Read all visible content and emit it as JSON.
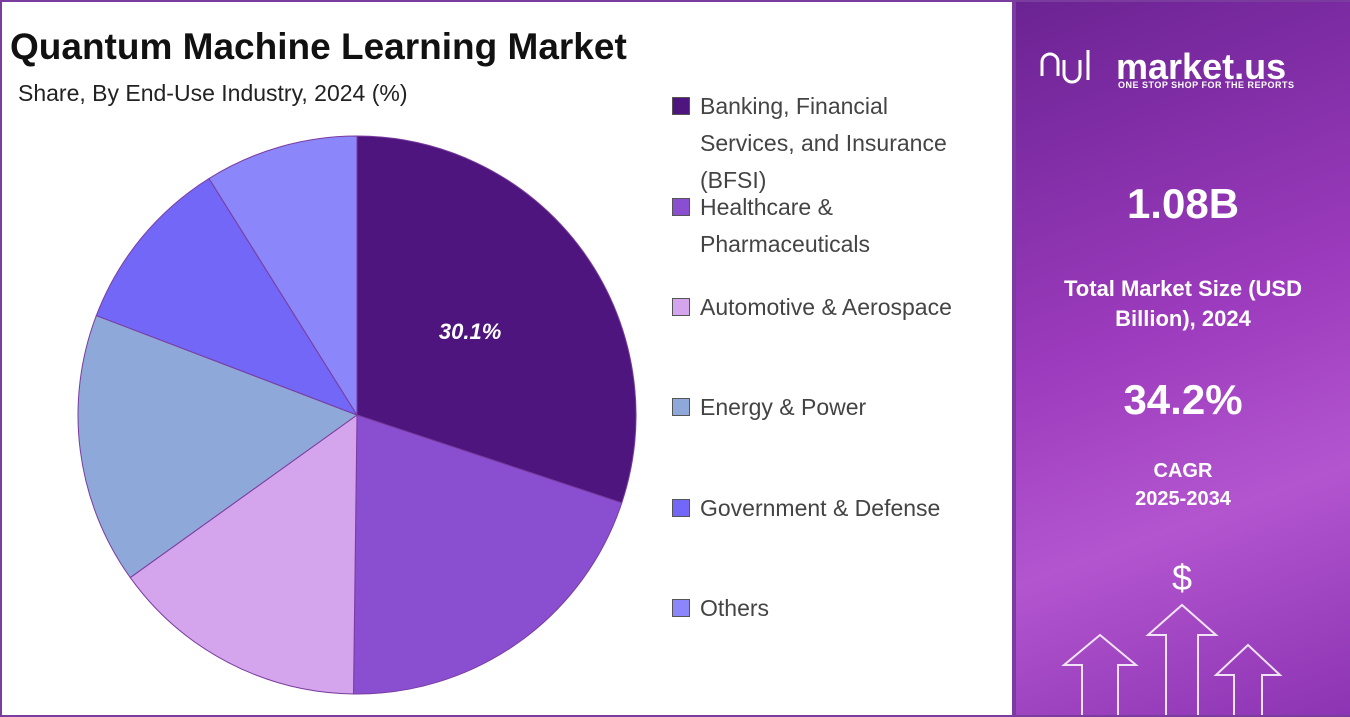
{
  "chart_data": {
    "type": "pie",
    "title": "Quantum Machine Learning Market",
    "subtitle": "Share, By End-Use Industry, 2024 (%)",
    "categories": [
      "Banking, Financial Services, and Insurance (BFSI)",
      "Healthcare & Pharmaceuticals",
      "Automotive & Aerospace",
      "Energy & Power",
      "Government & Defense",
      "Others"
    ],
    "values": [
      30.1,
      20.1,
      14.9,
      15.7,
      10.3,
      8.9
    ],
    "value_labels": [
      "30.1%",
      null,
      null,
      null,
      null,
      null
    ],
    "colors": [
      "#4e157f",
      "#8a4fd0",
      "#d4a5ec",
      "#8fa8da",
      "#7267f7",
      "#8b87fa"
    ]
  },
  "panel": {
    "brand": "market.us",
    "tagline": "ONE STOP SHOP FOR THE REPORTS",
    "market_size": "1.08B",
    "market_size_label": "Total Market Size (USD Billion), 2024",
    "cagr": "34.2%",
    "cagr_label": "CAGR",
    "cagr_period": "2025-2034"
  }
}
